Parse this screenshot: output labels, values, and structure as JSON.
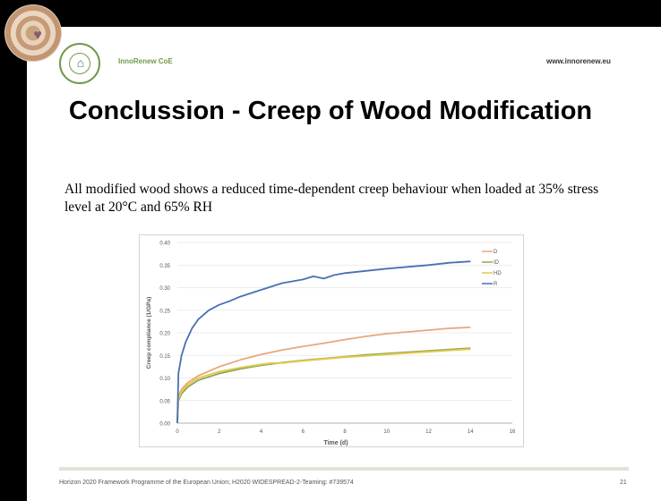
{
  "header": {
    "org_name": "InnoRenew CoE",
    "website": "www.innorenew.eu"
  },
  "slide_title": "Conclussion - Creep of Wood Modification",
  "body_text": "All modified wood shows a reduced time-dependent creep behaviour when loaded at 35% stress level at 20°C and 65% RH",
  "footer": {
    "text": "Horizon 2020 Framework Programme of the European Union; H2020 WIDESPREAD-2-Teaming: #739574",
    "page_number": "21"
  },
  "colors": {
    "D": "#e8a77c",
    "ID": "#8aa85a",
    "HD": "#e5c94a",
    "R": "#4a6fb5"
  },
  "chart_data": {
    "type": "line",
    "xlabel": "Time (d)",
    "ylabel": "Creep compliance (1/GPa)",
    "xlim": [
      0,
      16
    ],
    "ylim": [
      0,
      0.4
    ],
    "xticks": [
      "0",
      "2",
      "4",
      "6",
      "8",
      "10",
      "12",
      "14",
      "16"
    ],
    "yticks": [
      "0.00",
      "0.05",
      "0.10",
      "0.15",
      "0.20",
      "0.25",
      "0.30",
      "0.35",
      "0.40"
    ],
    "grid": "horizontal",
    "legend_position": "top-right",
    "series": [
      {
        "name": "D",
        "color": "#e8a77c",
        "points": [
          [
            0,
            0.0
          ],
          [
            0.05,
            0.06
          ],
          [
            0.2,
            0.075
          ],
          [
            0.5,
            0.09
          ],
          [
            1,
            0.105
          ],
          [
            2,
            0.125
          ],
          [
            3,
            0.14
          ],
          [
            4,
            0.152
          ],
          [
            5,
            0.162
          ],
          [
            6,
            0.17
          ],
          [
            7,
            0.177
          ],
          [
            8,
            0.185
          ],
          [
            9,
            0.192
          ],
          [
            10,
            0.198
          ],
          [
            11,
            0.202
          ],
          [
            12,
            0.206
          ],
          [
            13,
            0.21
          ],
          [
            14,
            0.212
          ]
        ]
      },
      {
        "name": "ID",
        "color": "#8aa85a",
        "points": [
          [
            0,
            0.0
          ],
          [
            0.05,
            0.05
          ],
          [
            0.2,
            0.065
          ],
          [
            0.5,
            0.08
          ],
          [
            1,
            0.095
          ],
          [
            2,
            0.11
          ],
          [
            3,
            0.12
          ],
          [
            4,
            0.128
          ],
          [
            5,
            0.134
          ],
          [
            6,
            0.139
          ],
          [
            7,
            0.143
          ],
          [
            8,
            0.147
          ],
          [
            9,
            0.151
          ],
          [
            10,
            0.154
          ],
          [
            11,
            0.157
          ],
          [
            12,
            0.16
          ],
          [
            13,
            0.163
          ],
          [
            14,
            0.166
          ]
        ]
      },
      {
        "name": "HD",
        "color": "#e5c94a",
        "points": [
          [
            0,
            0.0
          ],
          [
            0.05,
            0.055
          ],
          [
            0.2,
            0.07
          ],
          [
            0.5,
            0.085
          ],
          [
            1,
            0.1
          ],
          [
            2,
            0.114
          ],
          [
            3,
            0.123
          ],
          [
            4,
            0.13
          ],
          [
            4.5,
            0.133
          ],
          [
            5,
            0.133
          ],
          [
            6,
            0.138
          ],
          [
            7,
            0.142
          ],
          [
            8,
            0.146
          ],
          [
            9,
            0.149
          ],
          [
            10,
            0.152
          ],
          [
            11,
            0.155
          ],
          [
            12,
            0.158
          ],
          [
            13,
            0.161
          ],
          [
            14,
            0.164
          ]
        ]
      },
      {
        "name": "R",
        "color": "#4a6fb5",
        "points": [
          [
            0,
            0.0
          ],
          [
            0.05,
            0.11
          ],
          [
            0.2,
            0.15
          ],
          [
            0.4,
            0.18
          ],
          [
            0.7,
            0.21
          ],
          [
            1,
            0.23
          ],
          [
            1.5,
            0.25
          ],
          [
            2,
            0.262
          ],
          [
            2.5,
            0.27
          ],
          [
            3,
            0.28
          ],
          [
            4,
            0.295
          ],
          [
            5,
            0.31
          ],
          [
            6,
            0.318
          ],
          [
            6.5,
            0.325
          ],
          [
            7,
            0.32
          ],
          [
            7.5,
            0.328
          ],
          [
            8,
            0.332
          ],
          [
            9,
            0.337
          ],
          [
            10,
            0.342
          ],
          [
            11,
            0.346
          ],
          [
            12,
            0.35
          ],
          [
            13,
            0.355
          ],
          [
            14,
            0.358
          ]
        ]
      }
    ]
  }
}
